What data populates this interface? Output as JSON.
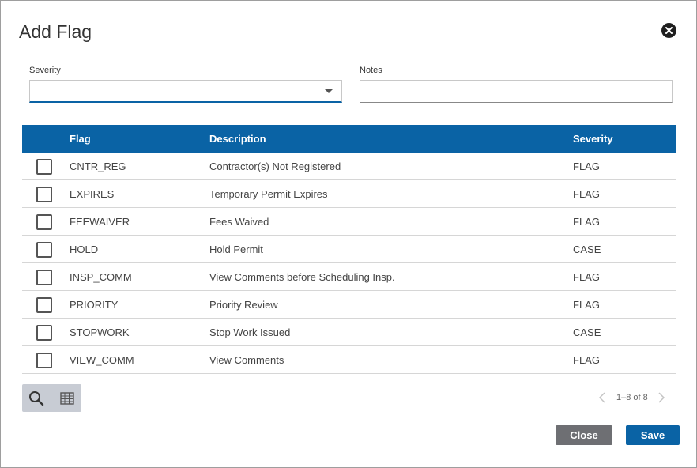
{
  "dialog": {
    "title": "Add Flag"
  },
  "form": {
    "severity_label": "Severity",
    "severity_value": "",
    "notes_label": "Notes",
    "notes_value": ""
  },
  "table": {
    "headers": {
      "flag": "Flag",
      "description": "Description",
      "severity": "Severity"
    },
    "rows": [
      {
        "flag": "CNTR_REG",
        "description": "Contractor(s) Not Registered",
        "severity": "FLAG",
        "checked": false
      },
      {
        "flag": "EXPIRES",
        "description": "Temporary Permit Expires",
        "severity": "FLAG",
        "checked": false
      },
      {
        "flag": "FEEWAIVER",
        "description": "Fees Waived",
        "severity": "FLAG",
        "checked": false
      },
      {
        "flag": "HOLD",
        "description": "Hold Permit",
        "severity": "CASE",
        "checked": false
      },
      {
        "flag": "INSP_COMM",
        "description": "View Comments before Scheduling Insp.",
        "severity": "FLAG",
        "checked": false
      },
      {
        "flag": "PRIORITY",
        "description": "Priority Review",
        "severity": "FLAG",
        "checked": false
      },
      {
        "flag": "STOPWORK",
        "description": "Stop Work Issued",
        "severity": "CASE",
        "checked": false
      },
      {
        "flag": "VIEW_COMM",
        "description": "View Comments",
        "severity": "FLAG",
        "checked": false
      }
    ]
  },
  "toolbar": {
    "icons": [
      "search-icon",
      "table-icon"
    ]
  },
  "pager": {
    "text": "1–8 of 8"
  },
  "footer": {
    "close_label": "Close",
    "save_label": "Save"
  },
  "colors": {
    "accent": "#0a63a5",
    "secondary_button": "#6e6f73",
    "toolbar_bg": "#c8ccd4"
  }
}
